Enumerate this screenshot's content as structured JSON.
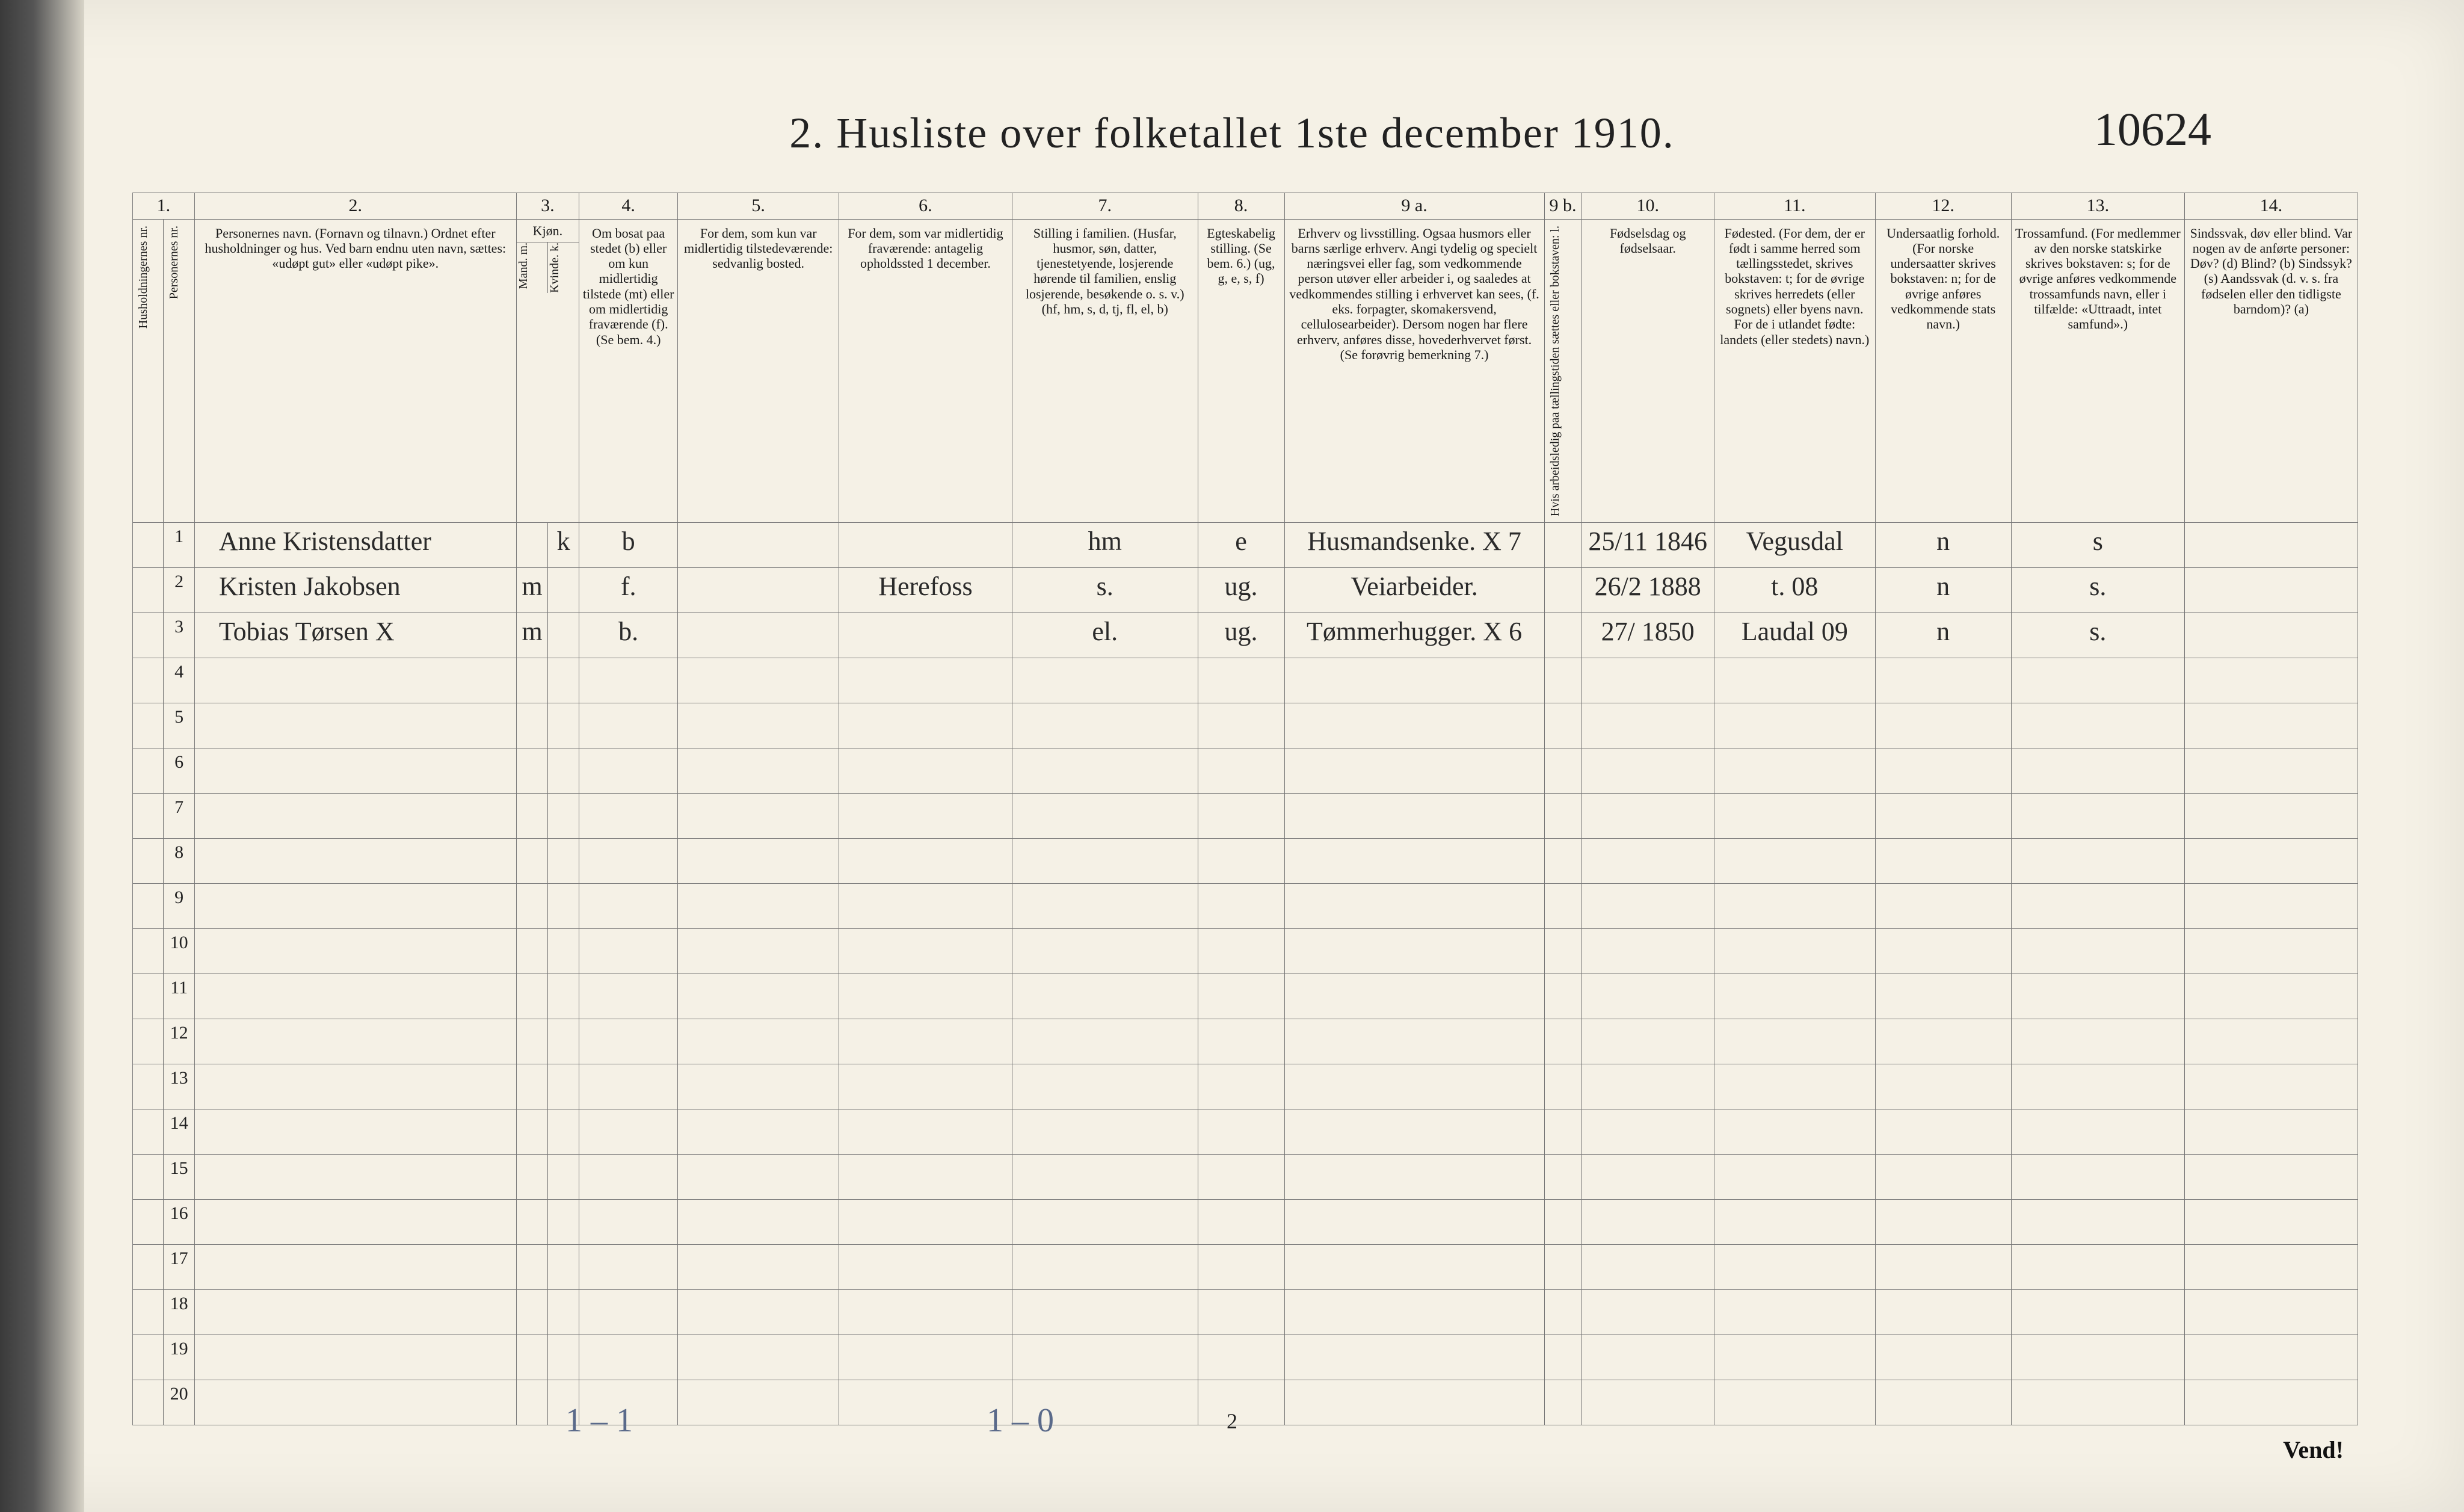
{
  "title": "2.  Husliste over folketallet 1ste december 1910.",
  "handwritten_id": "10624",
  "footer_page": "2",
  "hand_footer_1": "1 – 1",
  "hand_footer_2": "1 – 0",
  "vend": "Vend!",
  "col_nums": [
    "1.",
    "2.",
    "3.",
    "4.",
    "5.",
    "6.",
    "7.",
    "8.",
    "9 a.",
    "9 b.",
    "10.",
    "11.",
    "12.",
    "13.",
    "14."
  ],
  "headers": {
    "h1a": "Husholdningernes nr.",
    "h1b": "Personernes nr.",
    "h2": "Personernes navn.\n(Fornavn og tilnavn.)\nOrdnet efter husholdninger og hus.\nVed barn endnu uten navn, sættes: «udøpt gut» eller «udøpt pike».",
    "h3": "Kjøn.",
    "h3m": "Mand.\nm.",
    "h3k": "Kvinde.\nk.",
    "h4": "Om bosat paa stedet (b) eller om kun midlertidig tilstede (mt) eller om midlertidig fraværende (f). (Se bem. 4.)",
    "h5": "For dem, som kun var midlertidig tilstedeværende:\nsedvanlig bosted.",
    "h6": "For dem, som var midlertidig fraværende:\nantagelig opholdssted 1 december.",
    "h7": "Stilling i familien.\n(Husfar, husmor, søn, datter, tjenestetyende, losjerende hørende til familien, enslig losjerende, besøkende o. s. v.)\n(hf, hm, s, d, tj, fl, el, b)",
    "h8": "Egteskabelig stilling.\n(Se bem. 6.)\n(ug, g, e, s, f)",
    "h9a": "Erhverv og livsstilling.\nOgsaa husmors eller barns særlige erhverv. Angi tydelig og specielt næringsvei eller fag, som vedkommende person utøver eller arbeider i, og saaledes at vedkommendes stilling i erhvervet kan sees, (f. eks. forpagter, skomakersvend, cellulosearbeider). Dersom nogen har flere erhverv, anføres disse, hovederhvervet først. (Se forøvrig bemerkning 7.)",
    "h9b": "Hvis arbeidsledig paa tællingstiden sættes eller bokstaven: l.",
    "h10": "Fødselsdag og fødselsaar.",
    "h11": "Fødested.\n(For dem, der er født i samme herred som tællingsstedet, skrives bokstaven: t; for de øvrige skrives herredets (eller sognets) eller byens navn. For de i utlandet fødte: landets (eller stedets) navn.)",
    "h12": "Undersaatlig forhold.\n(For norske undersaatter skrives bokstaven: n; for de øvrige anføres vedkommende stats navn.)",
    "h13": "Trossamfund.\n(For medlemmer av den norske statskirke skrives bokstaven: s; for de øvrige anføres vedkommende trossamfunds navn, eller i tilfælde: «Uttraadt, intet samfund».)",
    "h14": "Sindssvak, døv eller blind.\nVar nogen av de anførte personer:\nDøv? (d)\nBlind? (b)\nSindssyk? (s)\nAandssvak (d. v. s. fra fødselen eller den tidligste barndom)? (a)"
  },
  "rows": [
    {
      "num": "1",
      "name": "Anne Kristensdatter",
      "m": "",
      "k": "k",
      "res": "b",
      "mt": "",
      "fr": "",
      "fam": "hm",
      "eg": "e",
      "occ": "Husmandsenke. X 7",
      "ul": "",
      "dob": "25/11 1846",
      "birthplace": "Vegusdal",
      "nat": "n",
      "rel": "s",
      "dis": ""
    },
    {
      "num": "2",
      "name": "Kristen Jakobsen",
      "m": "m",
      "k": "",
      "res": "f.",
      "mt": "",
      "fr": "Herefoss",
      "fam": "s.",
      "eg": "ug.",
      "occ": "Veiarbeider.",
      "ul": "",
      "dob": "26/2 1888",
      "birthplace": "t.",
      "birthplace_note": "08",
      "nat": "n",
      "rel": "s.",
      "dis": ""
    },
    {
      "num": "3",
      "name": "Tobias Tørsen X",
      "m": "m",
      "k": "",
      "res": "b.",
      "mt": "",
      "fr": "",
      "fam": "el.",
      "eg": "ug.",
      "occ": "Tømmerhugger. X 6",
      "ul": "",
      "dob": "27/ 1850",
      "birthplace": "Laudal 09",
      "nat": "n",
      "rel": "s.",
      "dis": ""
    }
  ],
  "blank_count": 17
}
